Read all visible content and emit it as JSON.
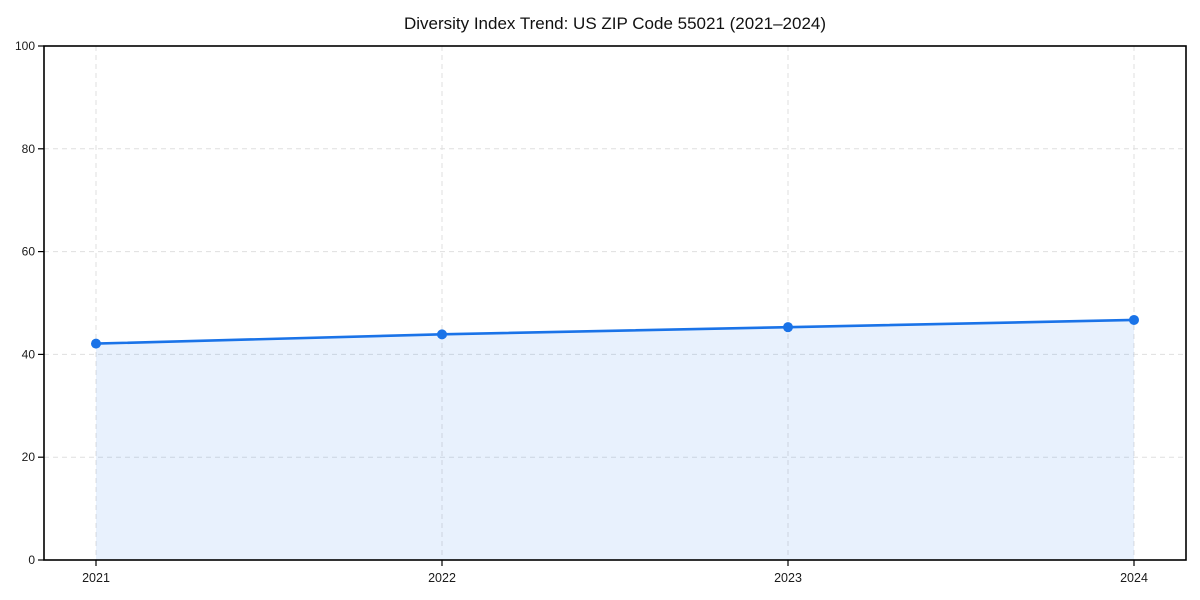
{
  "chart_data": {
    "type": "area",
    "title": "Diversity Index Trend: US ZIP Code 55021 (2021–2024)",
    "x": [
      "2021",
      "2022",
      "2023",
      "2024"
    ],
    "series": [
      {
        "name": "Diversity Index",
        "values": [
          42.1,
          43.9,
          45.3,
          46.7
        ]
      }
    ],
    "xlabel": "",
    "ylabel": "",
    "ylim": [
      0,
      100
    ],
    "yticks": [
      0,
      20,
      40,
      60,
      80,
      100
    ],
    "grid": true,
    "grid_style": "dashed",
    "legend_position": "none",
    "marker": "circle",
    "colors": {
      "line": "#1a73e8",
      "marker": "#1a73e8",
      "fill": "rgba(26,115,232,0.10)",
      "grid": "#dfdfdf",
      "spine": "#000000",
      "text": "#1a1a1a",
      "background": "#ffffff"
    }
  }
}
